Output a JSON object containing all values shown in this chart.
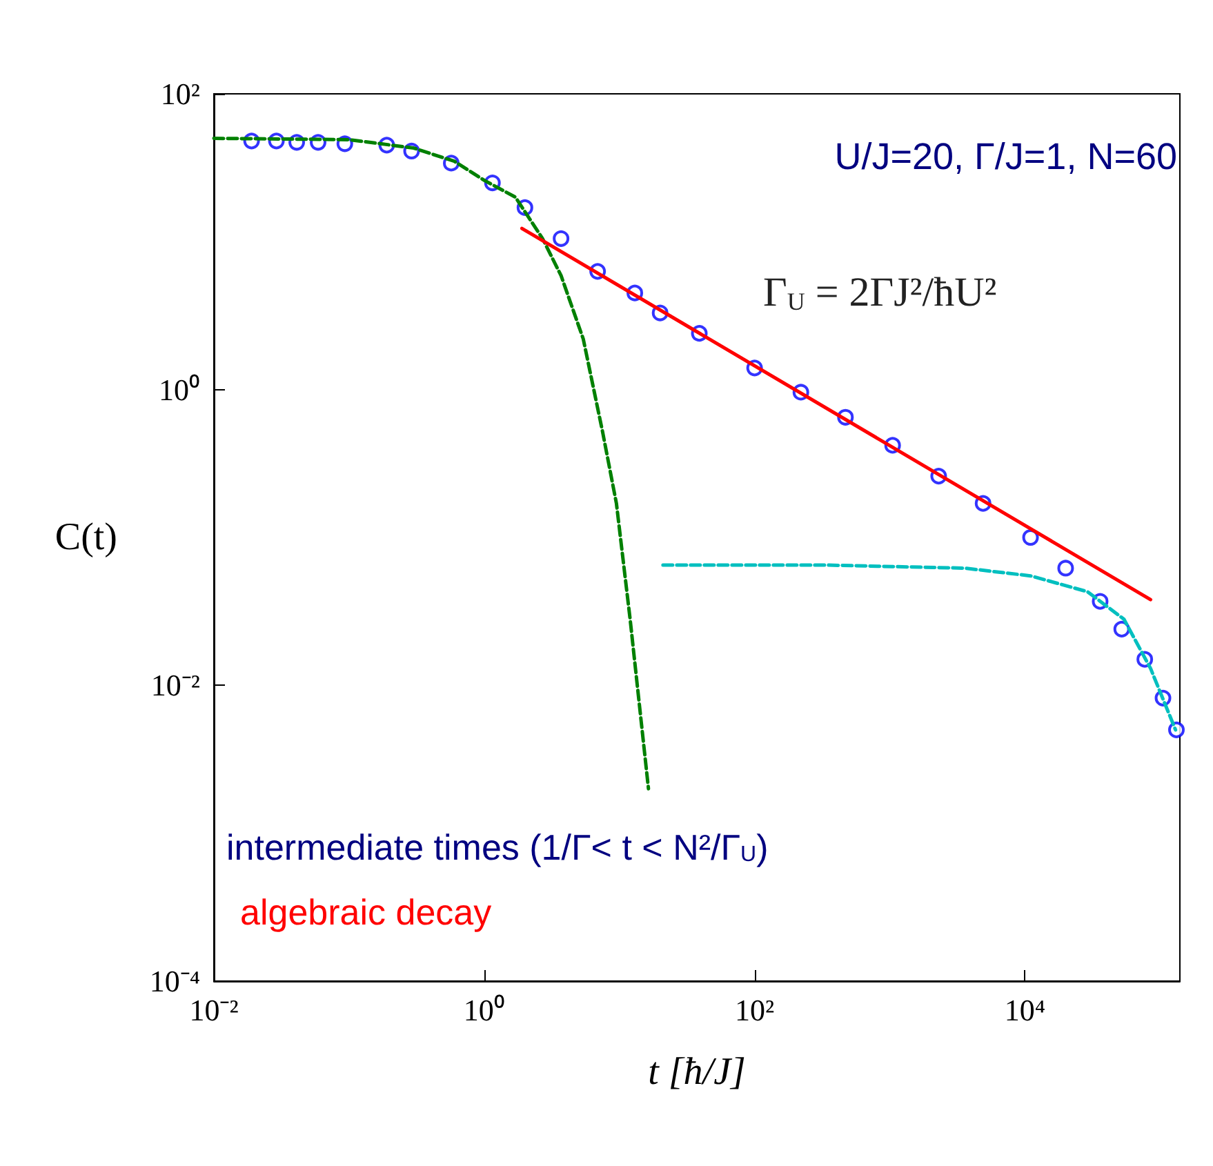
{
  "chart_data": {
    "type": "line",
    "xlabel": "t [ħ/J]",
    "ylabel": "C(t)",
    "log": "xy",
    "grid": false,
    "xlim": [
      0.01,
      140000
    ],
    "ylim": [
      0.0001,
      100
    ],
    "xticks": [
      {
        "value": 0.01,
        "label": "10⁻²"
      },
      {
        "value": 1,
        "label": "10⁰"
      },
      {
        "value": 100,
        "label": "10²"
      },
      {
        "value": 10000,
        "label": "10⁴"
      }
    ],
    "yticks": [
      {
        "value": 0.0001,
        "label": "10⁻⁴"
      },
      {
        "value": 0.01,
        "label": "10⁻²"
      },
      {
        "value": 1,
        "label": "10⁰"
      },
      {
        "value": 100,
        "label": "10²"
      }
    ],
    "annotations": [
      "U/J=20, Γ/J=1, N=60",
      "Γ$_{U}$ = 2ΓJ²/ħU²",
      "intermediate times (1/Γ< t < N²/Γ$_{U}$)",
      "algebraic decay"
    ],
    "series": [
      {
        "color": "#008000",
        "line_style": "dashed",
        "x": [
          0.01,
          0.1,
          0.3,
          0.6,
          1.0,
          1.7,
          2.7,
          3.7,
          5.4,
          7.5,
          9.5,
          12,
          16.4
        ],
        "values": [
          50,
          49,
          43,
          35,
          26,
          20,
          10.5,
          5.9,
          2.2,
          0.52,
          0.17,
          0.028,
          0.002
        ]
      },
      {
        "color": "#00bfbf",
        "line_style": "dashed",
        "x": [
          21,
          350,
          3600,
          11000,
          29000,
          54000,
          85000,
          130000
        ],
        "values": [
          0.065,
          0.065,
          0.062,
          0.055,
          0.043,
          0.028,
          0.013,
          0.005
        ]
      },
      {
        "type": "scatter",
        "color": "#0000ff",
        "marker": "circle",
        "x": [
          0.019,
          0.029,
          0.041,
          0.059,
          0.093,
          0.19,
          0.29,
          0.57,
          1.15,
          2.0,
          3.7,
          6.9,
          13,
          20,
          39,
          100,
          220,
          470,
          1050,
          2300,
          4900,
          11000,
          20000,
          36000,
          52000,
          77000,
          105000,
          132000
        ],
        "values": [
          48,
          48,
          47,
          47,
          46,
          45,
          41,
          34,
          25,
          17,
          10.5,
          6.3,
          4.5,
          3.3,
          2.4,
          1.4,
          0.96,
          0.65,
          0.42,
          0.26,
          0.17,
          0.1,
          0.062,
          0.037,
          0.024,
          0.015,
          0.0082,
          0.005
        ]
      },
      {
        "color": "#ff0000",
        "line_style": "solid",
        "x": [
          1.9,
          85000
        ],
        "values": [
          12.3,
          0.038
        ]
      }
    ]
  }
}
